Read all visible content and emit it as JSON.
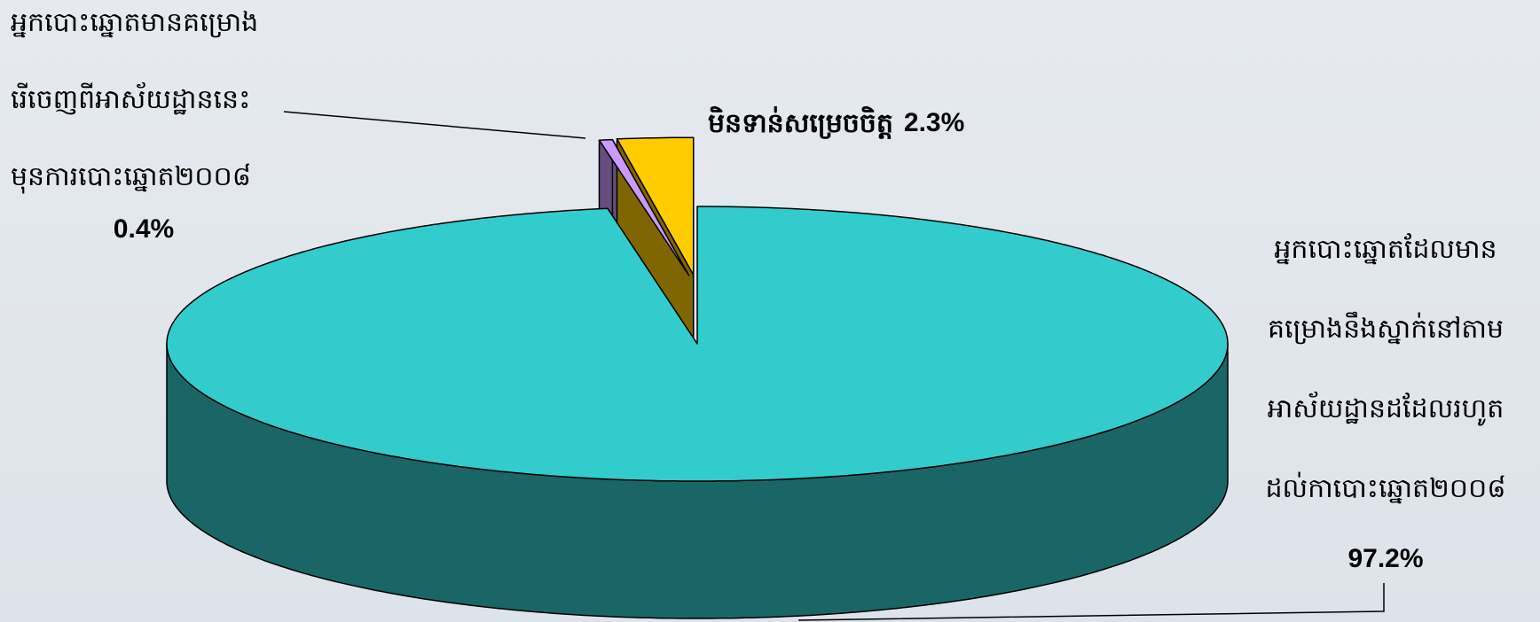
{
  "chart_data": {
    "type": "pie",
    "labels": [
      [
        "អ្នកបោះឆ្នោតដែលមាន",
        "គម្រោងនឹងស្នាក់នៅតាម",
        "អាស័យដ្ឋានដដែលរហូត",
        "ដល់កាបោះឆ្នោត២០០៨"
      ],
      [
        "អ្នកបោះឆ្នោតមានគម្រោង",
        "រើចេញពីអាស័យដ្ឋាននេះ",
        "មុនការបោះឆ្នោត២០០៨"
      ],
      [
        "មិនទាន់សម្រេចចិត្ត"
      ]
    ],
    "values": [
      97.2,
      0.4,
      2.3
    ],
    "value_labels": [
      "97.2%",
      "0.4%",
      "2.3%"
    ],
    "colors": [
      "#33cccc",
      "#cc99ff",
      "#ffcc00"
    ],
    "explode": [
      false,
      true,
      true
    ]
  }
}
